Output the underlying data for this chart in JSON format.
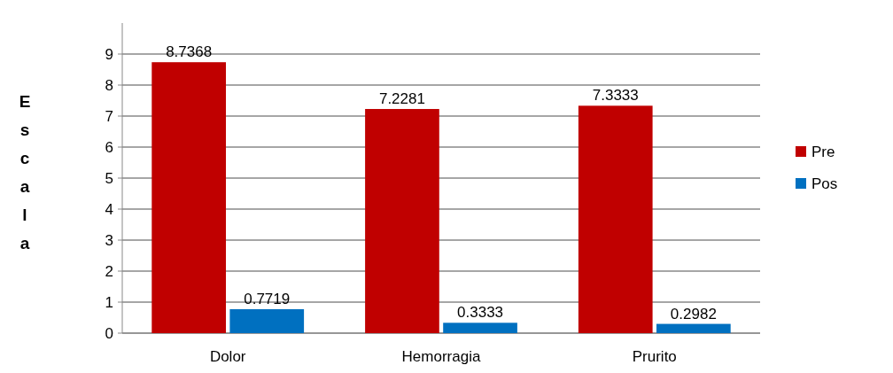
{
  "chart_data": {
    "type": "bar",
    "ylabel": "Escala",
    "categories": [
      "Dolor",
      "Hemorragia",
      "Prurito"
    ],
    "series": [
      {
        "name": "Pre",
        "color": "#c00000",
        "values": [
          8.7368,
          7.2281,
          7.3333
        ]
      },
      {
        "name": "Pos",
        "color": "#0070c0",
        "values": [
          0.7719,
          0.3333,
          0.2982
        ]
      }
    ],
    "ylim": [
      0,
      10
    ],
    "yticks": [
      0,
      1,
      2,
      3,
      4,
      5,
      6,
      7,
      8,
      9
    ],
    "grid": "y",
    "legend": "right",
    "data_labels": true
  }
}
